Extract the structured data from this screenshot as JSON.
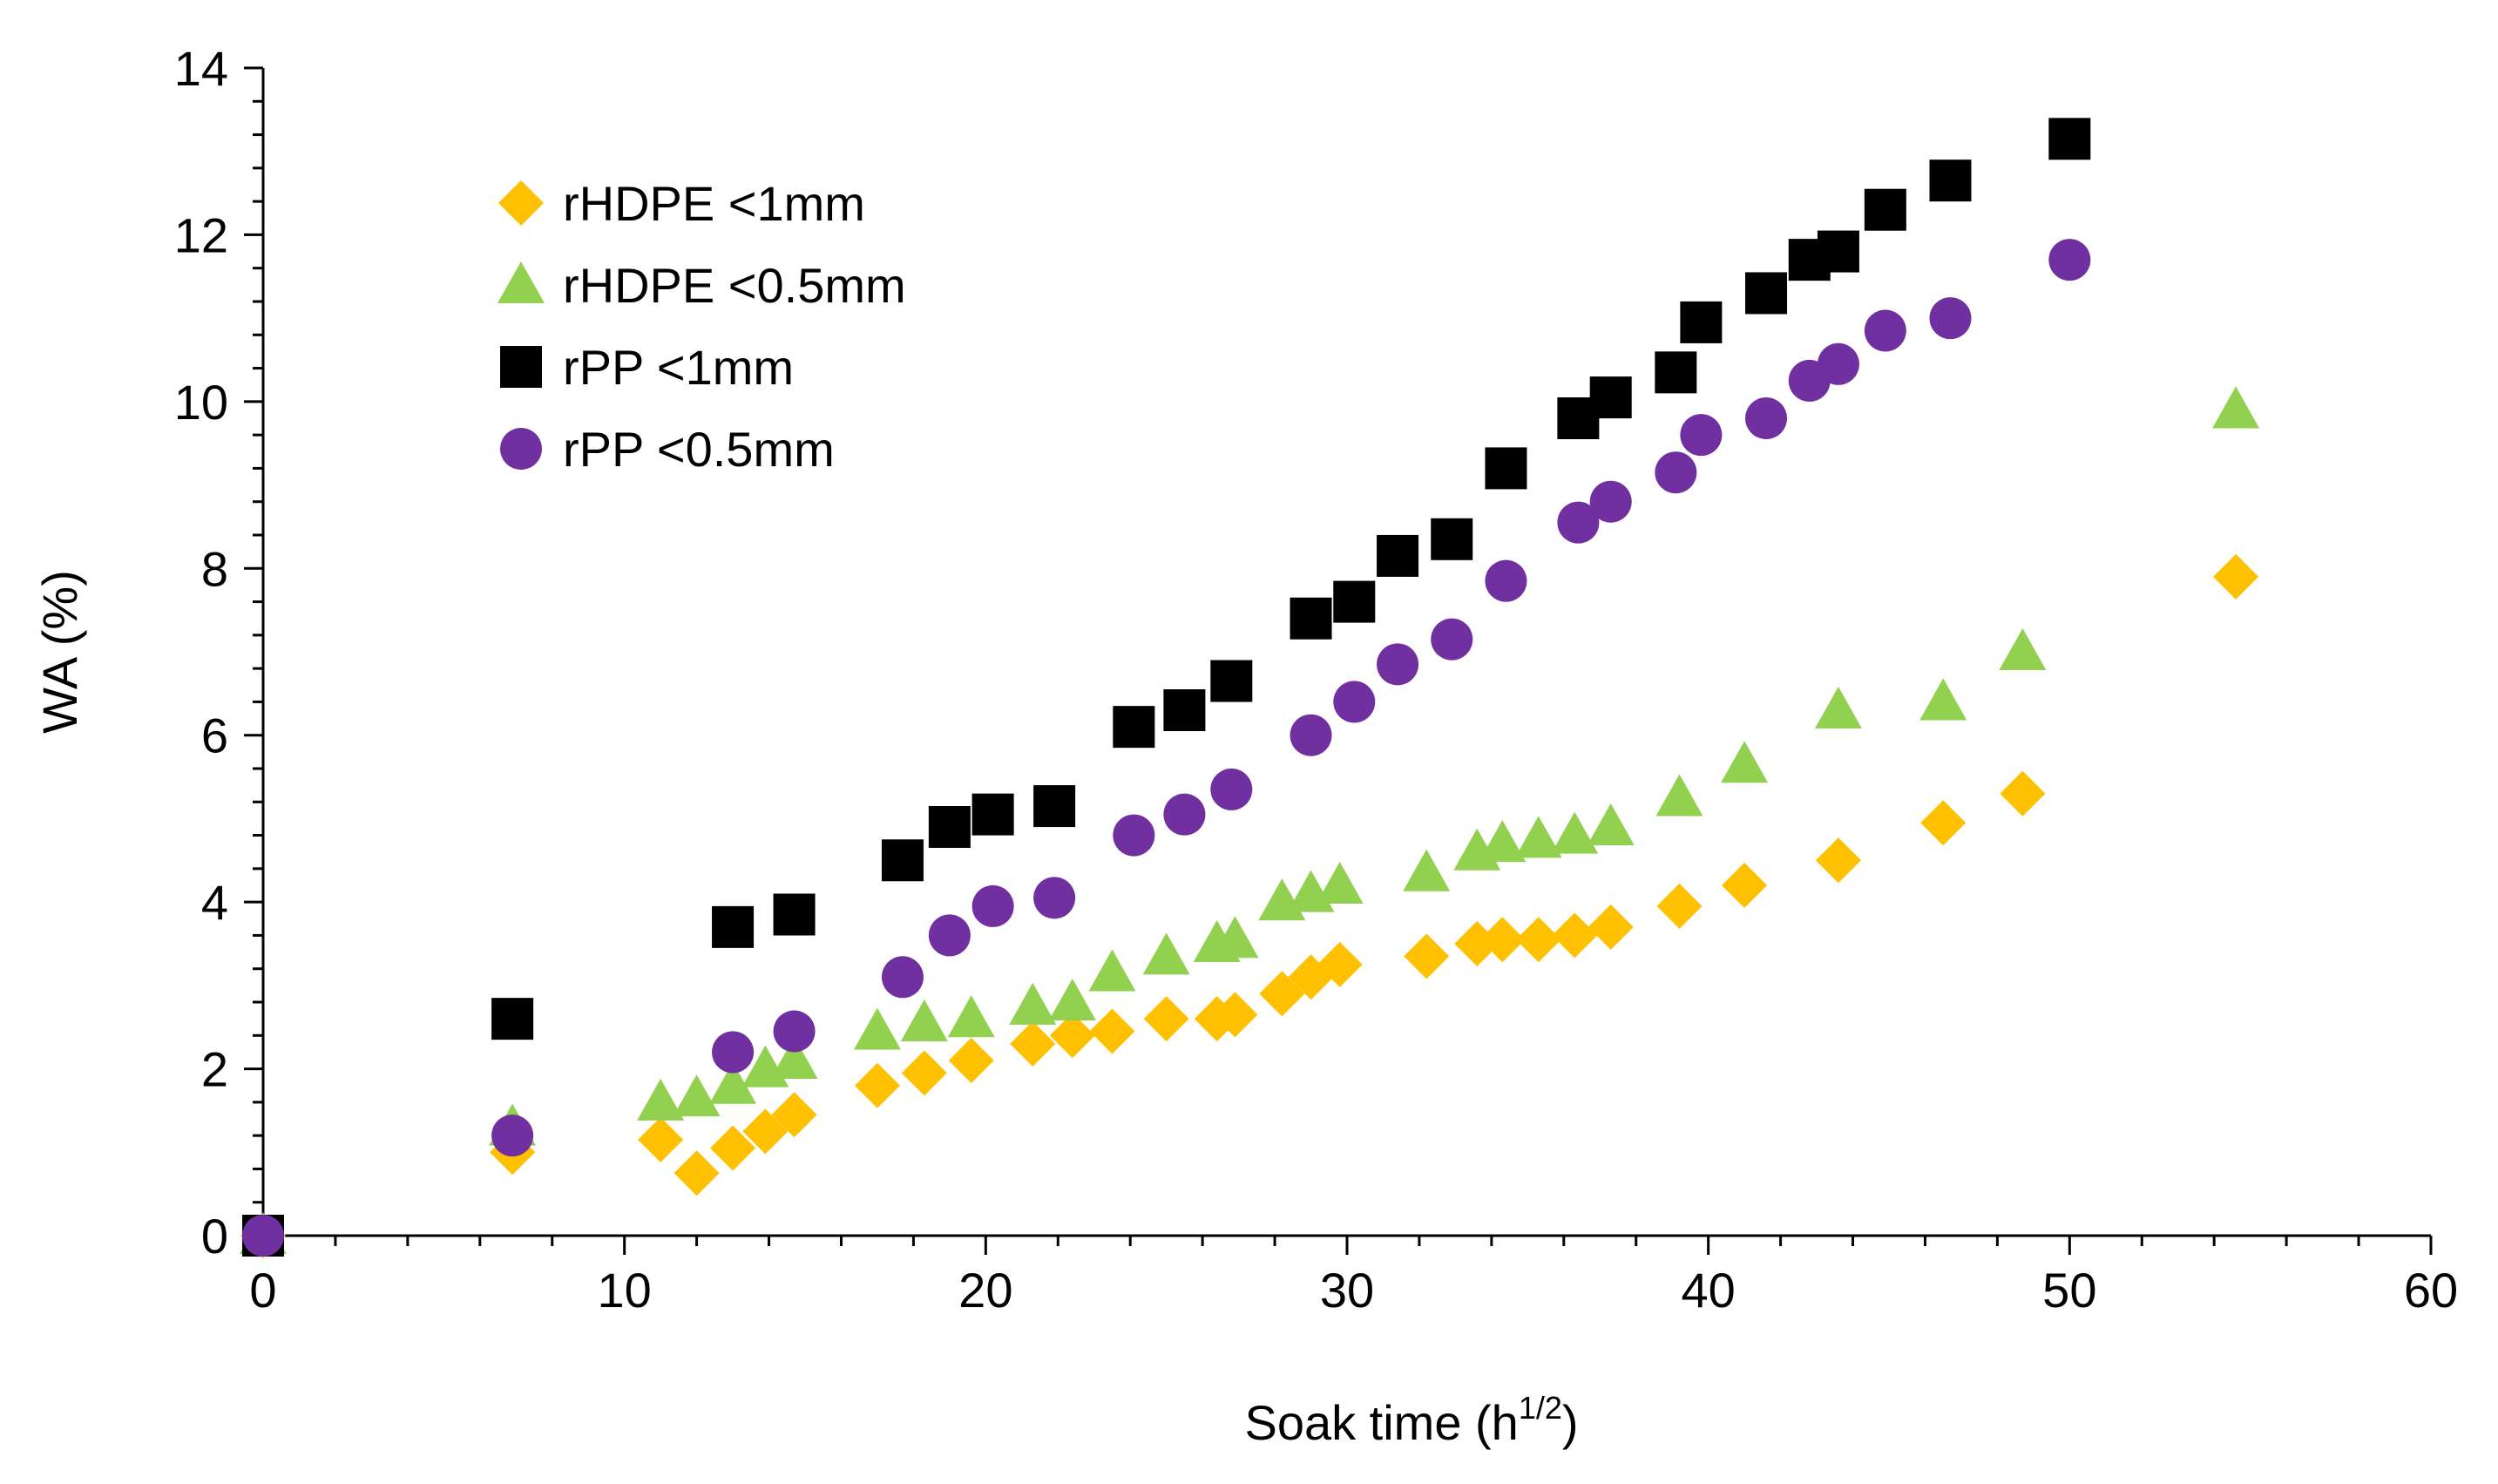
{
  "chart_data": {
    "type": "scatter",
    "title": "",
    "xlabel": "Soak time (h",
    "xlabel_sup": "1/2",
    "xlabel_close": ")",
    "ylabel": "WA (%)",
    "xlim": [
      0,
      60
    ],
    "ylim": [
      0,
      14
    ],
    "xticks": [
      0,
      10,
      20,
      30,
      40,
      50,
      60
    ],
    "yticks": [
      0,
      2,
      4,
      6,
      8,
      10,
      12,
      14
    ],
    "grid": false,
    "legend_position": "top-left",
    "series": [
      {
        "name": "rHDPE <1mm",
        "marker": "diamond",
        "color": "#FFC000",
        "x": [
          0,
          6.9,
          11,
          12,
          13,
          13.9,
          14.7,
          17,
          18.3,
          19.6,
          21.3,
          22.4,
          23.5,
          25,
          26.4,
          26.9,
          28.2,
          29,
          29.8,
          32.2,
          33.6,
          34.3,
          35.3,
          36.3,
          37.3,
          39.2,
          41,
          43.6,
          46.5,
          48.7,
          54.6
        ],
        "y": [
          0,
          1.0,
          1.15,
          0.75,
          1.05,
          1.25,
          1.45,
          1.8,
          1.95,
          2.1,
          2.3,
          2.4,
          2.45,
          2.6,
          2.6,
          2.65,
          2.9,
          3.1,
          3.25,
          3.35,
          3.5,
          3.55,
          3.55,
          3.6,
          3.7,
          3.95,
          4.2,
          4.5,
          4.95,
          5.3,
          7.9
        ]
      },
      {
        "name": "rHDPE <0.5mm",
        "marker": "triangle",
        "color": "#92D050",
        "x": [
          0,
          6.9,
          11,
          12,
          13,
          13.9,
          14.7,
          17,
          18.3,
          19.6,
          21.3,
          22.4,
          23.5,
          25,
          26.4,
          26.9,
          28.2,
          29,
          29.8,
          32.2,
          33.6,
          34.3,
          35.3,
          36.3,
          37.3,
          39.2,
          41,
          43.6,
          46.5,
          48.7,
          54.6
        ],
        "y": [
          0,
          1.3,
          1.6,
          1.65,
          1.8,
          2.0,
          2.1,
          2.45,
          2.55,
          2.6,
          2.75,
          2.8,
          3.15,
          3.35,
          3.5,
          3.55,
          4.0,
          4.1,
          4.2,
          4.35,
          4.6,
          4.7,
          4.75,
          4.8,
          4.9,
          5.25,
          5.65,
          6.3,
          6.4,
          7.0,
          9.9
        ]
      },
      {
        "name": "rPP <1mm",
        "marker": "square",
        "color": "#000000",
        "x": [
          0,
          6.9,
          13,
          14.7,
          17.7,
          19,
          20.2,
          21.9,
          24.1,
          25.5,
          26.8,
          29,
          30.2,
          31.4,
          32.9,
          34.4,
          36.4,
          37.3,
          39.1,
          39.8,
          41.6,
          42.8,
          43.6,
          44.9,
          46.7,
          50
        ],
        "y": [
          0,
          2.6,
          3.7,
          3.85,
          4.5,
          4.9,
          5.05,
          5.15,
          6.1,
          6.3,
          6.65,
          7.4,
          7.6,
          8.15,
          8.35,
          9.2,
          9.8,
          10.05,
          10.35,
          10.95,
          11.3,
          11.7,
          11.8,
          12.3,
          12.65,
          13.15
        ]
      },
      {
        "name": "rPP <0.5mm",
        "marker": "circle",
        "color": "#7030A0",
        "x": [
          0,
          6.9,
          13,
          14.7,
          17.7,
          19,
          20.2,
          21.9,
          24.1,
          25.5,
          26.8,
          29,
          30.2,
          31.4,
          32.9,
          34.4,
          36.4,
          37.3,
          39.1,
          39.8,
          41.6,
          42.8,
          43.6,
          44.9,
          46.7,
          50
        ],
        "y": [
          0,
          1.2,
          2.2,
          2.45,
          3.1,
          3.6,
          3.95,
          4.05,
          4.8,
          5.05,
          5.35,
          6.0,
          6.4,
          6.85,
          7.15,
          7.85,
          8.55,
          8.8,
          9.15,
          9.6,
          9.8,
          10.25,
          10.45,
          10.85,
          11.0,
          11.7
        ]
      }
    ]
  }
}
